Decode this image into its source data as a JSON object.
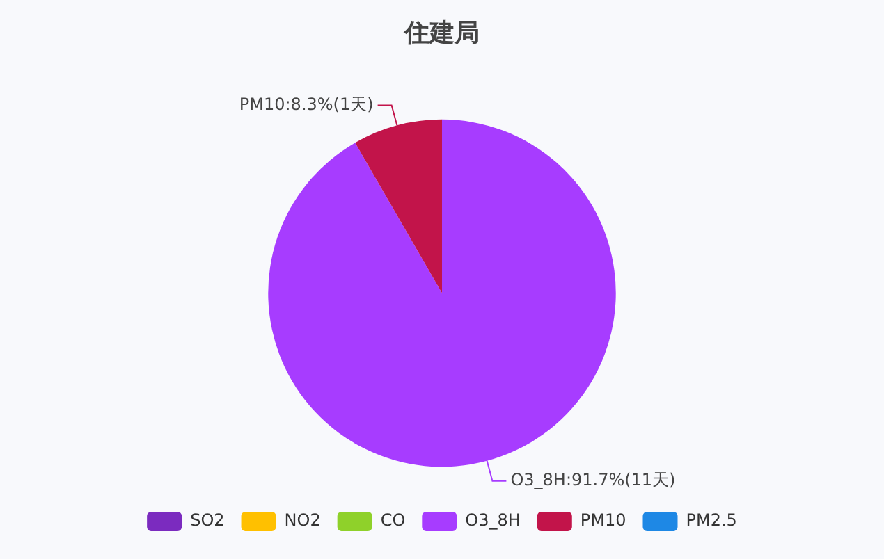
{
  "chart_data": {
    "type": "pie",
    "title": "住建局",
    "categories": [
      "SO2",
      "NO2",
      "CO",
      "O3_8H",
      "PM10",
      "PM2.5"
    ],
    "values": [
      0,
      0,
      0,
      11,
      1,
      0
    ],
    "colors": [
      "#7b2bbf",
      "#ffc000",
      "#8fd12a",
      "#a73cff",
      "#c2144a",
      "#1e88e5"
    ],
    "value_labels": [
      null,
      null,
      null,
      "O3_8H:91.7%(11天)",
      "PM10:8.3%(1天)",
      null
    ],
    "legend": "bottom"
  }
}
